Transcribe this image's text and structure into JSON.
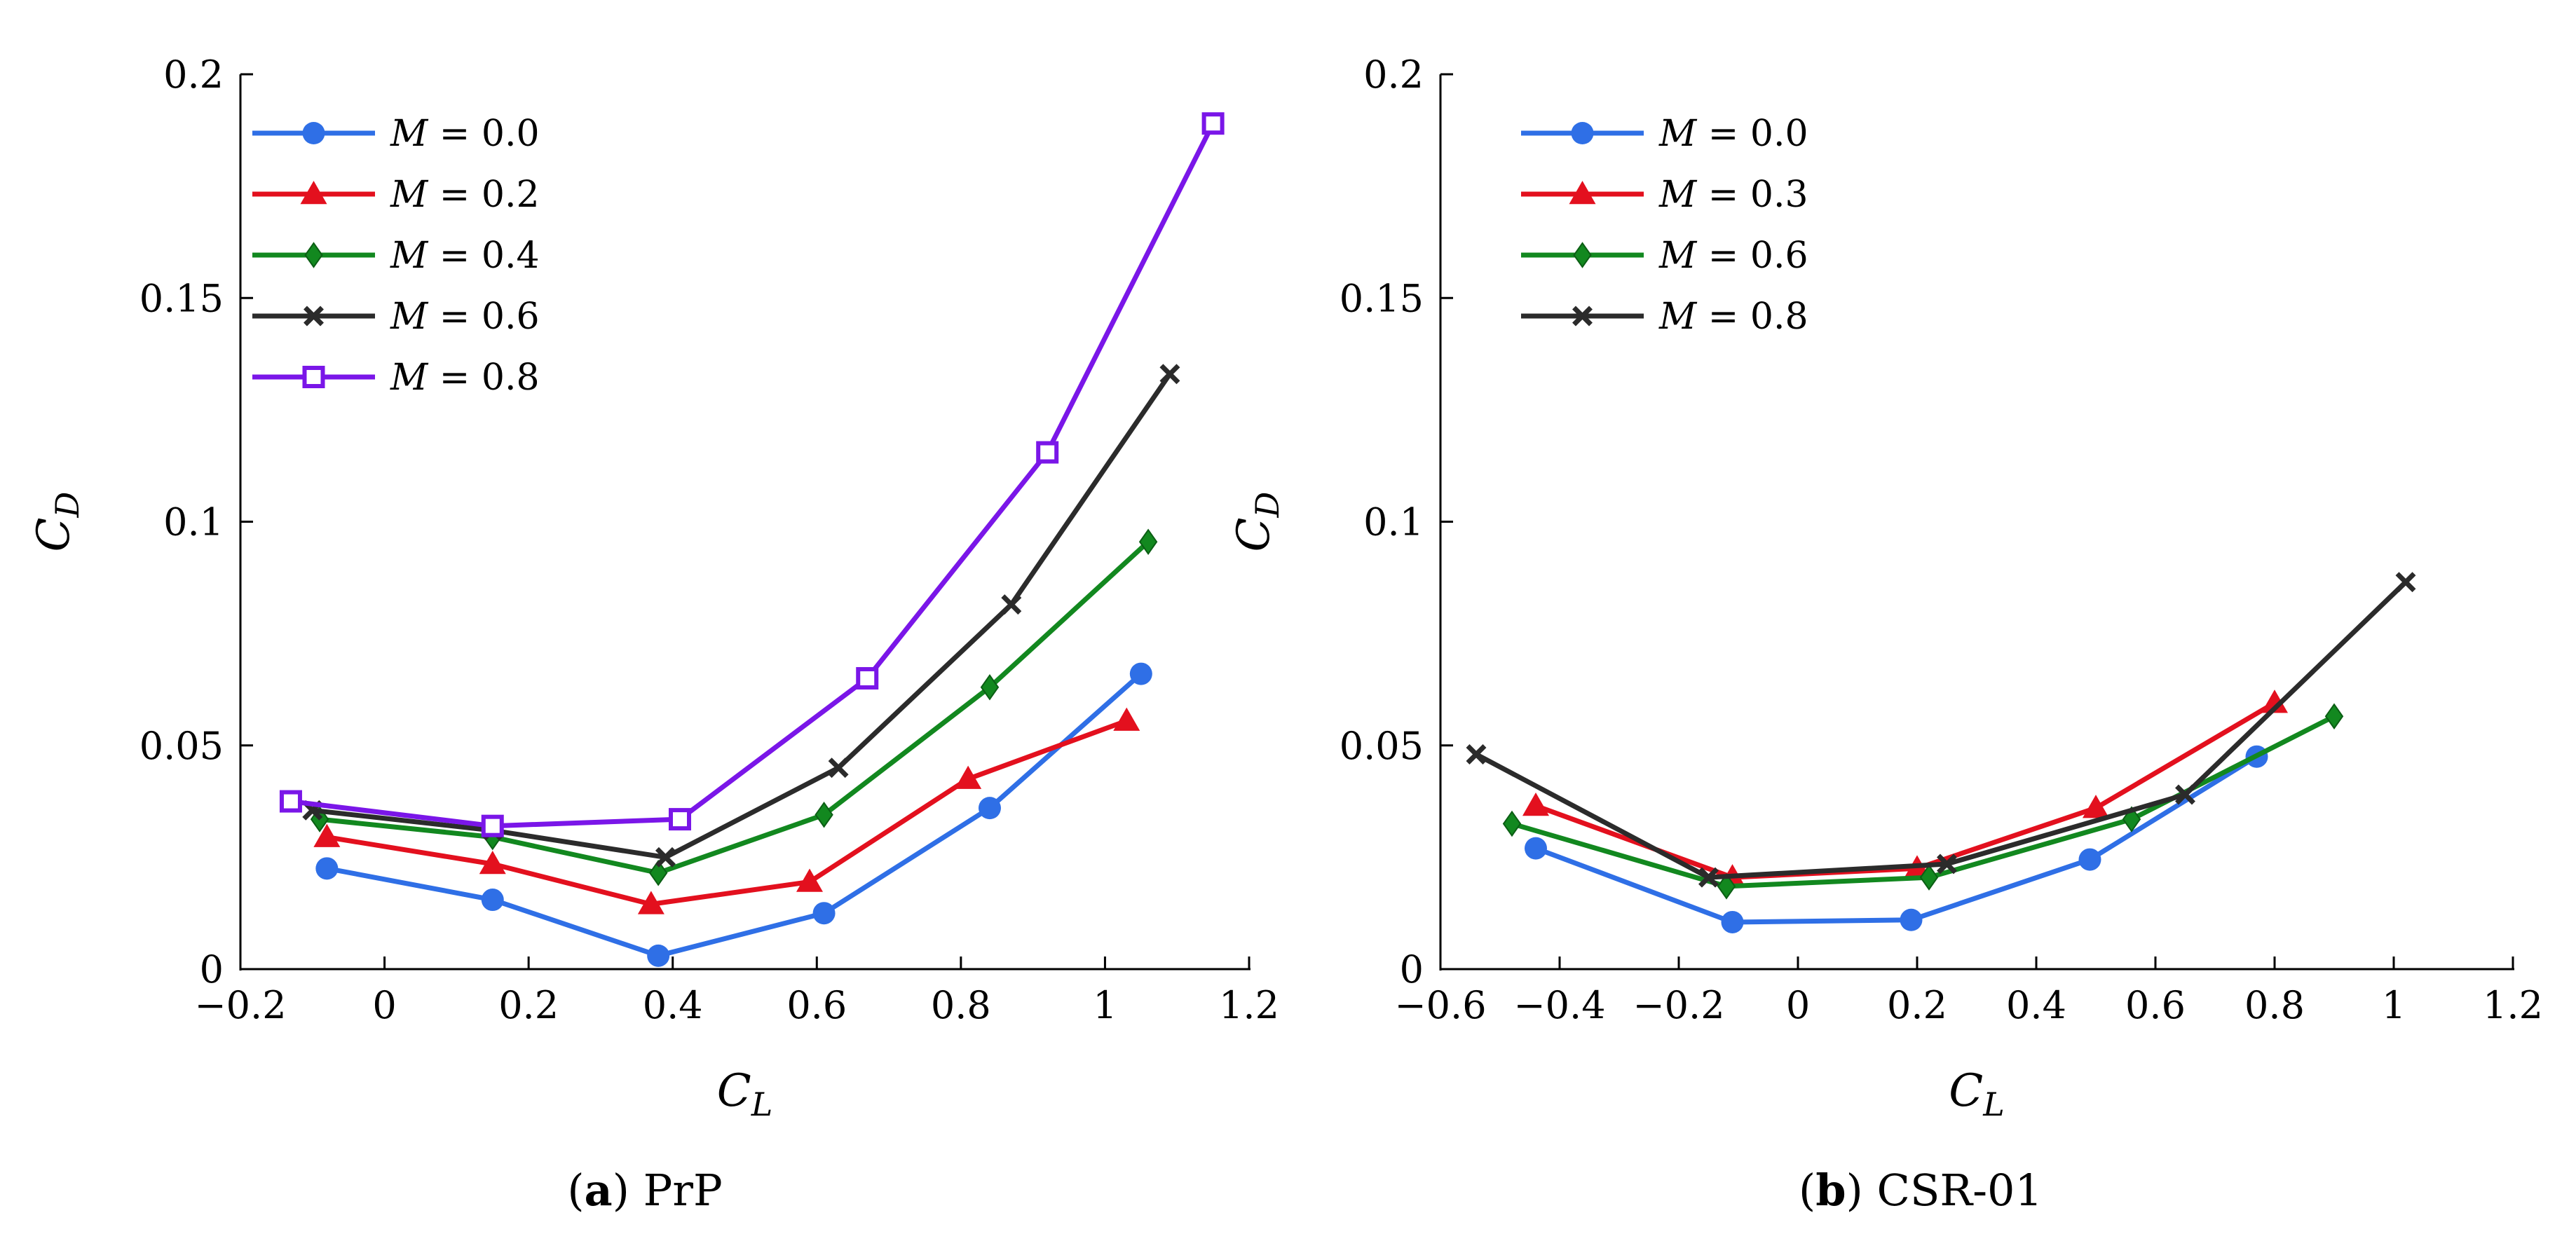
{
  "chart_data": [
    {
      "type": "line",
      "caption_letter": "a",
      "caption_text": "PrP",
      "xlabel_main": "C",
      "xlabel_sub": "L",
      "ylabel_main": "C",
      "ylabel_sub": "D",
      "xlim": [
        -0.2,
        1.2
      ],
      "ylim": [
        0,
        0.2
      ],
      "xticks": [
        -0.2,
        0,
        0.2,
        0.4,
        0.6,
        0.8,
        1,
        1.2
      ],
      "xtick_labels": [
        "−0.2",
        "0",
        "0.2",
        "0.4",
        "0.6",
        "0.8",
        "1",
        "1.2"
      ],
      "yticks": [
        0,
        0.05,
        0.1,
        0.15,
        0.2
      ],
      "ytick_labels": [
        "0",
        "0.05",
        "0.1",
        "0.15",
        "0.2"
      ],
      "legend_position": "top-left",
      "series": [
        {
          "name": "M = 0.0",
          "var": "M",
          "rest": " = 0.0",
          "color": "#2f6fe6",
          "marker": "circle",
          "points": [
            [
              -0.08,
              0.0225
            ],
            [
              0.15,
              0.0155
            ],
            [
              0.38,
              0.003
            ],
            [
              0.61,
              0.0125
            ],
            [
              0.84,
              0.036
            ],
            [
              1.05,
              0.066
            ]
          ]
        },
        {
          "name": "M = 0.2",
          "var": "M",
          "rest": " = 0.2",
          "color": "#e3101e",
          "marker": "triangle",
          "points": [
            [
              -0.08,
              0.0295
            ],
            [
              0.15,
              0.0235
            ],
            [
              0.37,
              0.0145
            ],
            [
              0.59,
              0.0195
            ],
            [
              0.81,
              0.0425
            ],
            [
              1.03,
              0.0555
            ]
          ]
        },
        {
          "name": "M = 0.4",
          "var": "M",
          "rest": " = 0.4",
          "color": "#12881f",
          "marker": "diamond",
          "points": [
            [
              -0.09,
              0.0335
            ],
            [
              0.15,
              0.0295
            ],
            [
              0.38,
              0.0215
            ],
            [
              0.61,
              0.0345
            ],
            [
              0.84,
              0.063
            ],
            [
              1.06,
              0.0955
            ]
          ]
        },
        {
          "name": "M = 0.6",
          "var": "M",
          "rest": " = 0.6",
          "color": "#2b2b2b",
          "marker": "cross",
          "points": [
            [
              -0.1,
              0.0355
            ],
            [
              0.15,
              0.031
            ],
            [
              0.39,
              0.025
            ],
            [
              0.63,
              0.045
            ],
            [
              0.87,
              0.0815
            ],
            [
              1.09,
              0.133
            ]
          ]
        },
        {
          "name": "M = 0.8",
          "var": "M",
          "rest": " = 0.8",
          "color": "#7a16e8",
          "marker": "square",
          "points": [
            [
              -0.13,
              0.0375
            ],
            [
              0.15,
              0.032
            ],
            [
              0.41,
              0.0335
            ],
            [
              0.67,
              0.065
            ],
            [
              0.92,
              0.1155
            ],
            [
              1.15,
              0.189
            ]
          ]
        }
      ]
    },
    {
      "type": "line",
      "caption_letter": "b",
      "caption_text": "CSR-01",
      "xlabel_main": "C",
      "xlabel_sub": "L",
      "ylabel_main": "C",
      "ylabel_sub": "D",
      "xlim": [
        -0.6,
        1.2
      ],
      "ylim": [
        0,
        0.2
      ],
      "xticks": [
        -0.6,
        -0.4,
        -0.2,
        0,
        0.2,
        0.4,
        0.6,
        0.8,
        1,
        1.2
      ],
      "xtick_labels": [
        "−0.6",
        "−0.4",
        "−0.2",
        "0",
        "0.2",
        "0.4",
        "0.6",
        "0.8",
        "1",
        "1.2"
      ],
      "yticks": [
        0,
        0.05,
        0.1,
        0.15,
        0.2
      ],
      "ytick_labels": [
        "0",
        "0.05",
        "0.1",
        "0.15",
        "0.2"
      ],
      "legend_position": "top-left",
      "series": [
        {
          "name": "M = 0.0",
          "var": "M",
          "rest": " = 0.0",
          "color": "#2f6fe6",
          "marker": "circle",
          "points": [
            [
              -0.44,
              0.027
            ],
            [
              -0.11,
              0.0105
            ],
            [
              0.19,
              0.011
            ],
            [
              0.49,
              0.0245
            ],
            [
              0.77,
              0.0475
            ]
          ]
        },
        {
          "name": "M = 0.3",
          "var": "M",
          "rest": " = 0.3",
          "color": "#e3101e",
          "marker": "triangle",
          "points": [
            [
              -0.44,
              0.0365
            ],
            [
              -0.11,
              0.0205
            ],
            [
              0.2,
              0.0225
            ],
            [
              0.5,
              0.036
            ],
            [
              0.8,
              0.0595
            ]
          ]
        },
        {
          "name": "M = 0.6",
          "var": "M",
          "rest": " = 0.6",
          "color": "#12881f",
          "marker": "diamond",
          "points": [
            [
              -0.48,
              0.0325
            ],
            [
              -0.12,
              0.0185
            ],
            [
              0.22,
              0.0205
            ],
            [
              0.56,
              0.0335
            ],
            [
              0.9,
              0.0565
            ]
          ]
        },
        {
          "name": "M = 0.8",
          "var": "M",
          "rest": " = 0.8",
          "color": "#2b2b2b",
          "marker": "cross",
          "points": [
            [
              -0.54,
              0.048
            ],
            [
              -0.15,
              0.0205
            ],
            [
              0.25,
              0.0235
            ],
            [
              0.65,
              0.039
            ],
            [
              1.02,
              0.0865
            ]
          ]
        }
      ]
    }
  ]
}
